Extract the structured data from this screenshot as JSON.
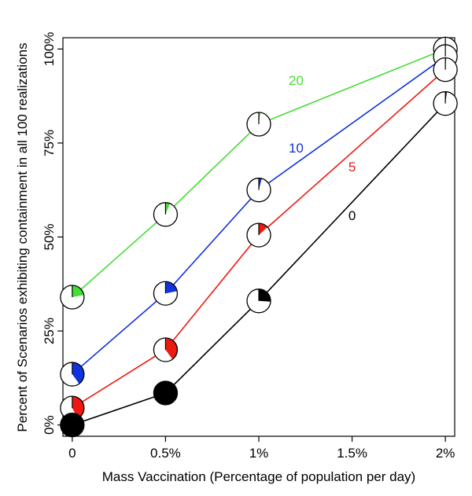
{
  "chart_data": {
    "type": "line",
    "xlabel": "Mass Vaccination (Percentage of population per day)",
    "ylabel": "Percent of Scenarios exhibiting containment in all 100 realizations",
    "x_ticks": [
      "0",
      "0.5%",
      "1%",
      "1.5%",
      "2%"
    ],
    "y_ticks": [
      "0%",
      "25%",
      "50%",
      "75%",
      "100%"
    ],
    "x": [
      0,
      0.5,
      1.0,
      2.0
    ],
    "xlim": [
      -0.05,
      2.05
    ],
    "ylim": [
      -3,
      103
    ],
    "series": [
      {
        "name": "20",
        "color": "#44dd33",
        "values": [
          34,
          56,
          80,
          100
        ],
        "fractions": [
          0.22,
          0.06,
          0.02,
          0.0
        ]
      },
      {
        "name": "10",
        "color": "#1133dd",
        "values": [
          13.5,
          35,
          62.5,
          98
        ],
        "fractions": [
          0.4,
          0.22,
          0.04,
          0.0
        ]
      },
      {
        "name": "5",
        "color": "#ee1a11",
        "values": [
          4.5,
          20,
          50.5,
          94.5
        ],
        "fractions": [
          0.42,
          0.4,
          0.13,
          0.01
        ]
      },
      {
        "name": "0",
        "color": "#000000",
        "values": [
          0,
          8.5,
          33,
          85.5
        ],
        "fractions": [
          1.0,
          1.0,
          0.26,
          0.02
        ]
      }
    ]
  }
}
